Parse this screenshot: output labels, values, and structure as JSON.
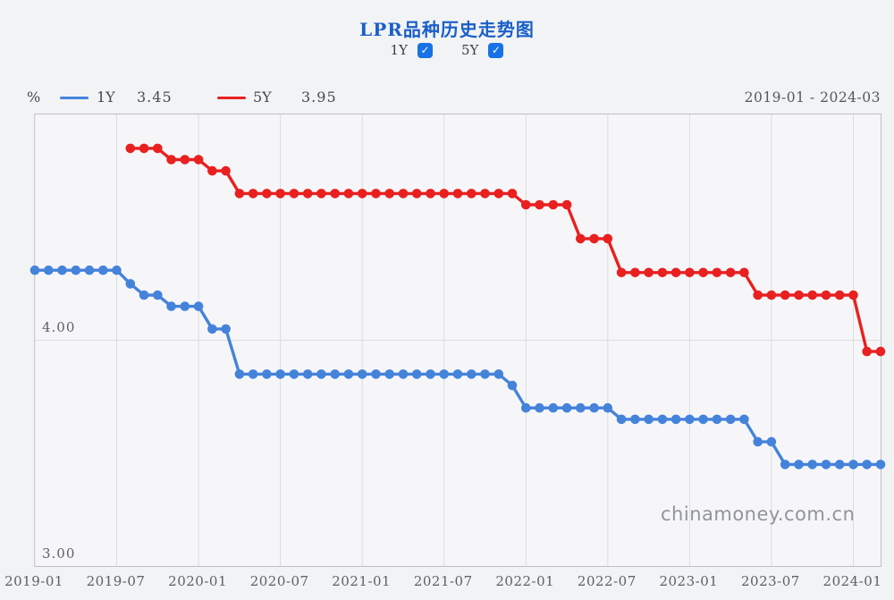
{
  "header": {
    "title": "LPR品种历史走势图",
    "range_label": "2019-01 - 2024-03"
  },
  "controls": {
    "checkboxes": [
      {
        "label": "1Y",
        "checked": true
      },
      {
        "label": "5Y",
        "checked": true
      }
    ]
  },
  "icons": {
    "checkmark": "✓"
  },
  "legend": {
    "unit": "%"
  },
  "watermark": "chinamoney.com.cn",
  "colors": {
    "title_blue": "#1a5fc8",
    "checkbox_blue": "#1672e6",
    "series_1y_blue": "#4583db",
    "series_5y_red": "#e92020",
    "gridline": "#dcdde2",
    "plot_border": "#bdc0c7",
    "axis_text": "#5d6066"
  },
  "chart_data": {
    "type": "line",
    "title": "LPR品种历史走势图",
    "x_start": "2019-01",
    "x_end": "2024-03",
    "x_tick_labels": [
      "2019-01",
      "2019-07",
      "2020-01",
      "2020-07",
      "2021-01",
      "2021-07",
      "2022-01",
      "2022-07",
      "2023-01",
      "2023-07",
      "2024-01"
    ],
    "y_tick_labels": [
      "4.00",
      "3.00"
    ],
    "y_gridlines": [
      4.0
    ],
    "ylim": [
      3.0,
      5.0
    ],
    "unit": "%",
    "grid": "vertical-6-month",
    "legend_position": "top-left",
    "series": [
      {
        "name": "1Y",
        "current": "3.45",
        "color": "#4583db",
        "start": "2019-01",
        "values": [
          4.31,
          4.31,
          4.31,
          4.31,
          4.31,
          4.31,
          4.31,
          4.25,
          4.2,
          4.2,
          4.15,
          4.15,
          4.15,
          4.05,
          4.05,
          3.85,
          3.85,
          3.85,
          3.85,
          3.85,
          3.85,
          3.85,
          3.85,
          3.85,
          3.85,
          3.85,
          3.85,
          3.85,
          3.85,
          3.85,
          3.85,
          3.85,
          3.85,
          3.85,
          3.85,
          3.8,
          3.7,
          3.7,
          3.7,
          3.7,
          3.7,
          3.7,
          3.7,
          3.65,
          3.65,
          3.65,
          3.65,
          3.65,
          3.65,
          3.65,
          3.65,
          3.65,
          3.65,
          3.55,
          3.55,
          3.45,
          3.45,
          3.45,
          3.45,
          3.45,
          3.45,
          3.45,
          3.45
        ]
      },
      {
        "name": "5Y",
        "current": "3.95",
        "color": "#e92020",
        "start": "2019-08",
        "values": [
          4.85,
          4.85,
          4.85,
          4.8,
          4.8,
          4.8,
          4.75,
          4.75,
          4.65,
          4.65,
          4.65,
          4.65,
          4.65,
          4.65,
          4.65,
          4.65,
          4.65,
          4.65,
          4.65,
          4.65,
          4.65,
          4.65,
          4.65,
          4.65,
          4.65,
          4.65,
          4.65,
          4.65,
          4.65,
          4.6,
          4.6,
          4.6,
          4.6,
          4.45,
          4.45,
          4.45,
          4.3,
          4.3,
          4.3,
          4.3,
          4.3,
          4.3,
          4.3,
          4.3,
          4.3,
          4.3,
          4.2,
          4.2,
          4.2,
          4.2,
          4.2,
          4.2,
          4.2,
          4.2,
          3.95,
          3.95
        ]
      }
    ]
  }
}
